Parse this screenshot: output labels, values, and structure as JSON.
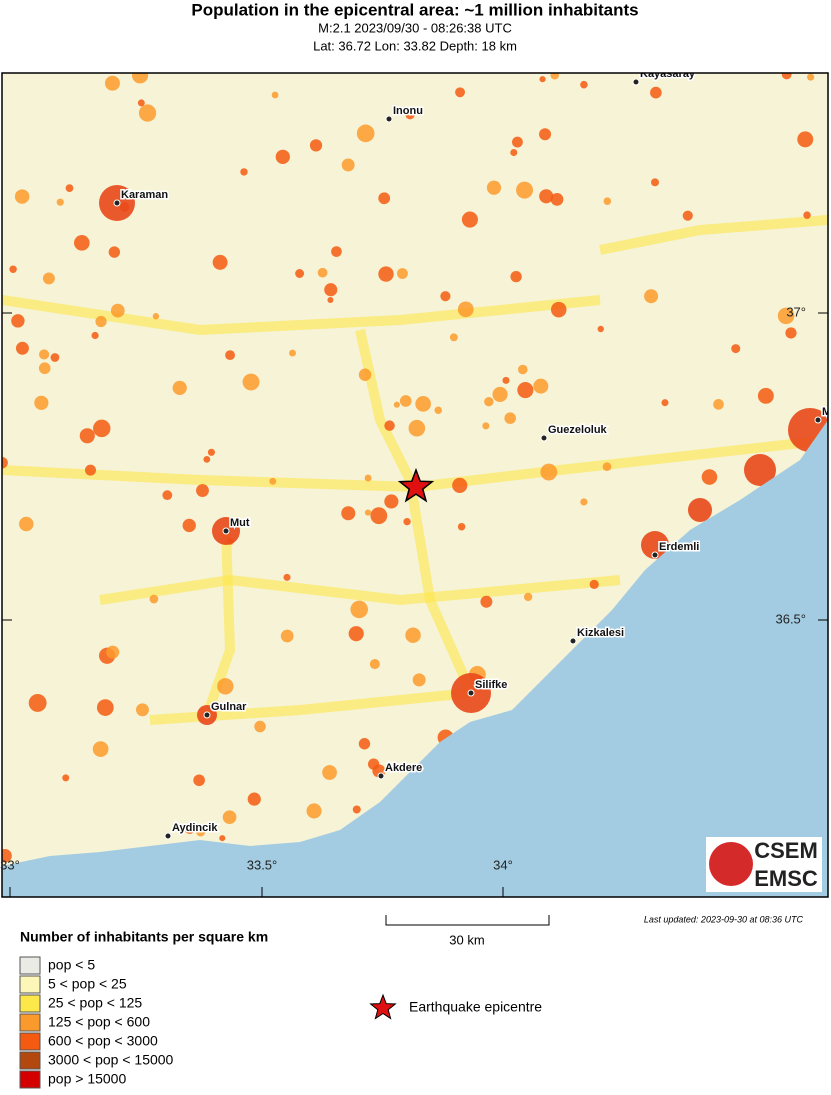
{
  "header": {
    "title": "Population in the epicentral area: ~1 million inhabitants",
    "line1": "M:2.1 2023/09/30 - 08:26:38 UTC",
    "line2": "Lat: 36.72 Lon: 33.82 Depth: 18 km"
  },
  "map": {
    "cities": [
      {
        "label": "Kayasaray"
      },
      {
        "label": "Inonu"
      },
      {
        "label": "Karaman"
      },
      {
        "label": "Guezeloluk"
      },
      {
        "label": "Mut"
      },
      {
        "label": "Erdemli"
      },
      {
        "label": "Kizkalesi"
      },
      {
        "label": "Silifke"
      },
      {
        "label": "Gulnar"
      },
      {
        "label": "Akdere"
      },
      {
        "label": "Aydincik"
      },
      {
        "label": "M"
      }
    ],
    "lat_labels": [
      "37°",
      "36.5°"
    ],
    "lon_labels": [
      "33°",
      "33.5°",
      "34°"
    ],
    "logo": {
      "top": "CSEM",
      "bottom": "EMSC"
    }
  },
  "last_updated": "Last updated: 2023-09-30 at 08:36 UTC",
  "scale_label": "30 km",
  "legend": {
    "title": "Number of inhabitants per square km",
    "items": [
      {
        "label": "pop < 5",
        "color": "#ebebe6"
      },
      {
        "label": "5 < pop < 25",
        "color": "#fcf7b8"
      },
      {
        "label": "25 < pop < 125",
        "color": "#fde84a"
      },
      {
        "label": "125 < pop < 600",
        "color": "#fb9a2c"
      },
      {
        "label": "600 < pop < 3000",
        "color": "#f45a10"
      },
      {
        "label": "3000 < pop < 15000",
        "color": "#b3480e"
      },
      {
        "label": "pop > 15000",
        "color": "#d40000"
      }
    ],
    "epicentre": "Earthquake epicentre"
  }
}
